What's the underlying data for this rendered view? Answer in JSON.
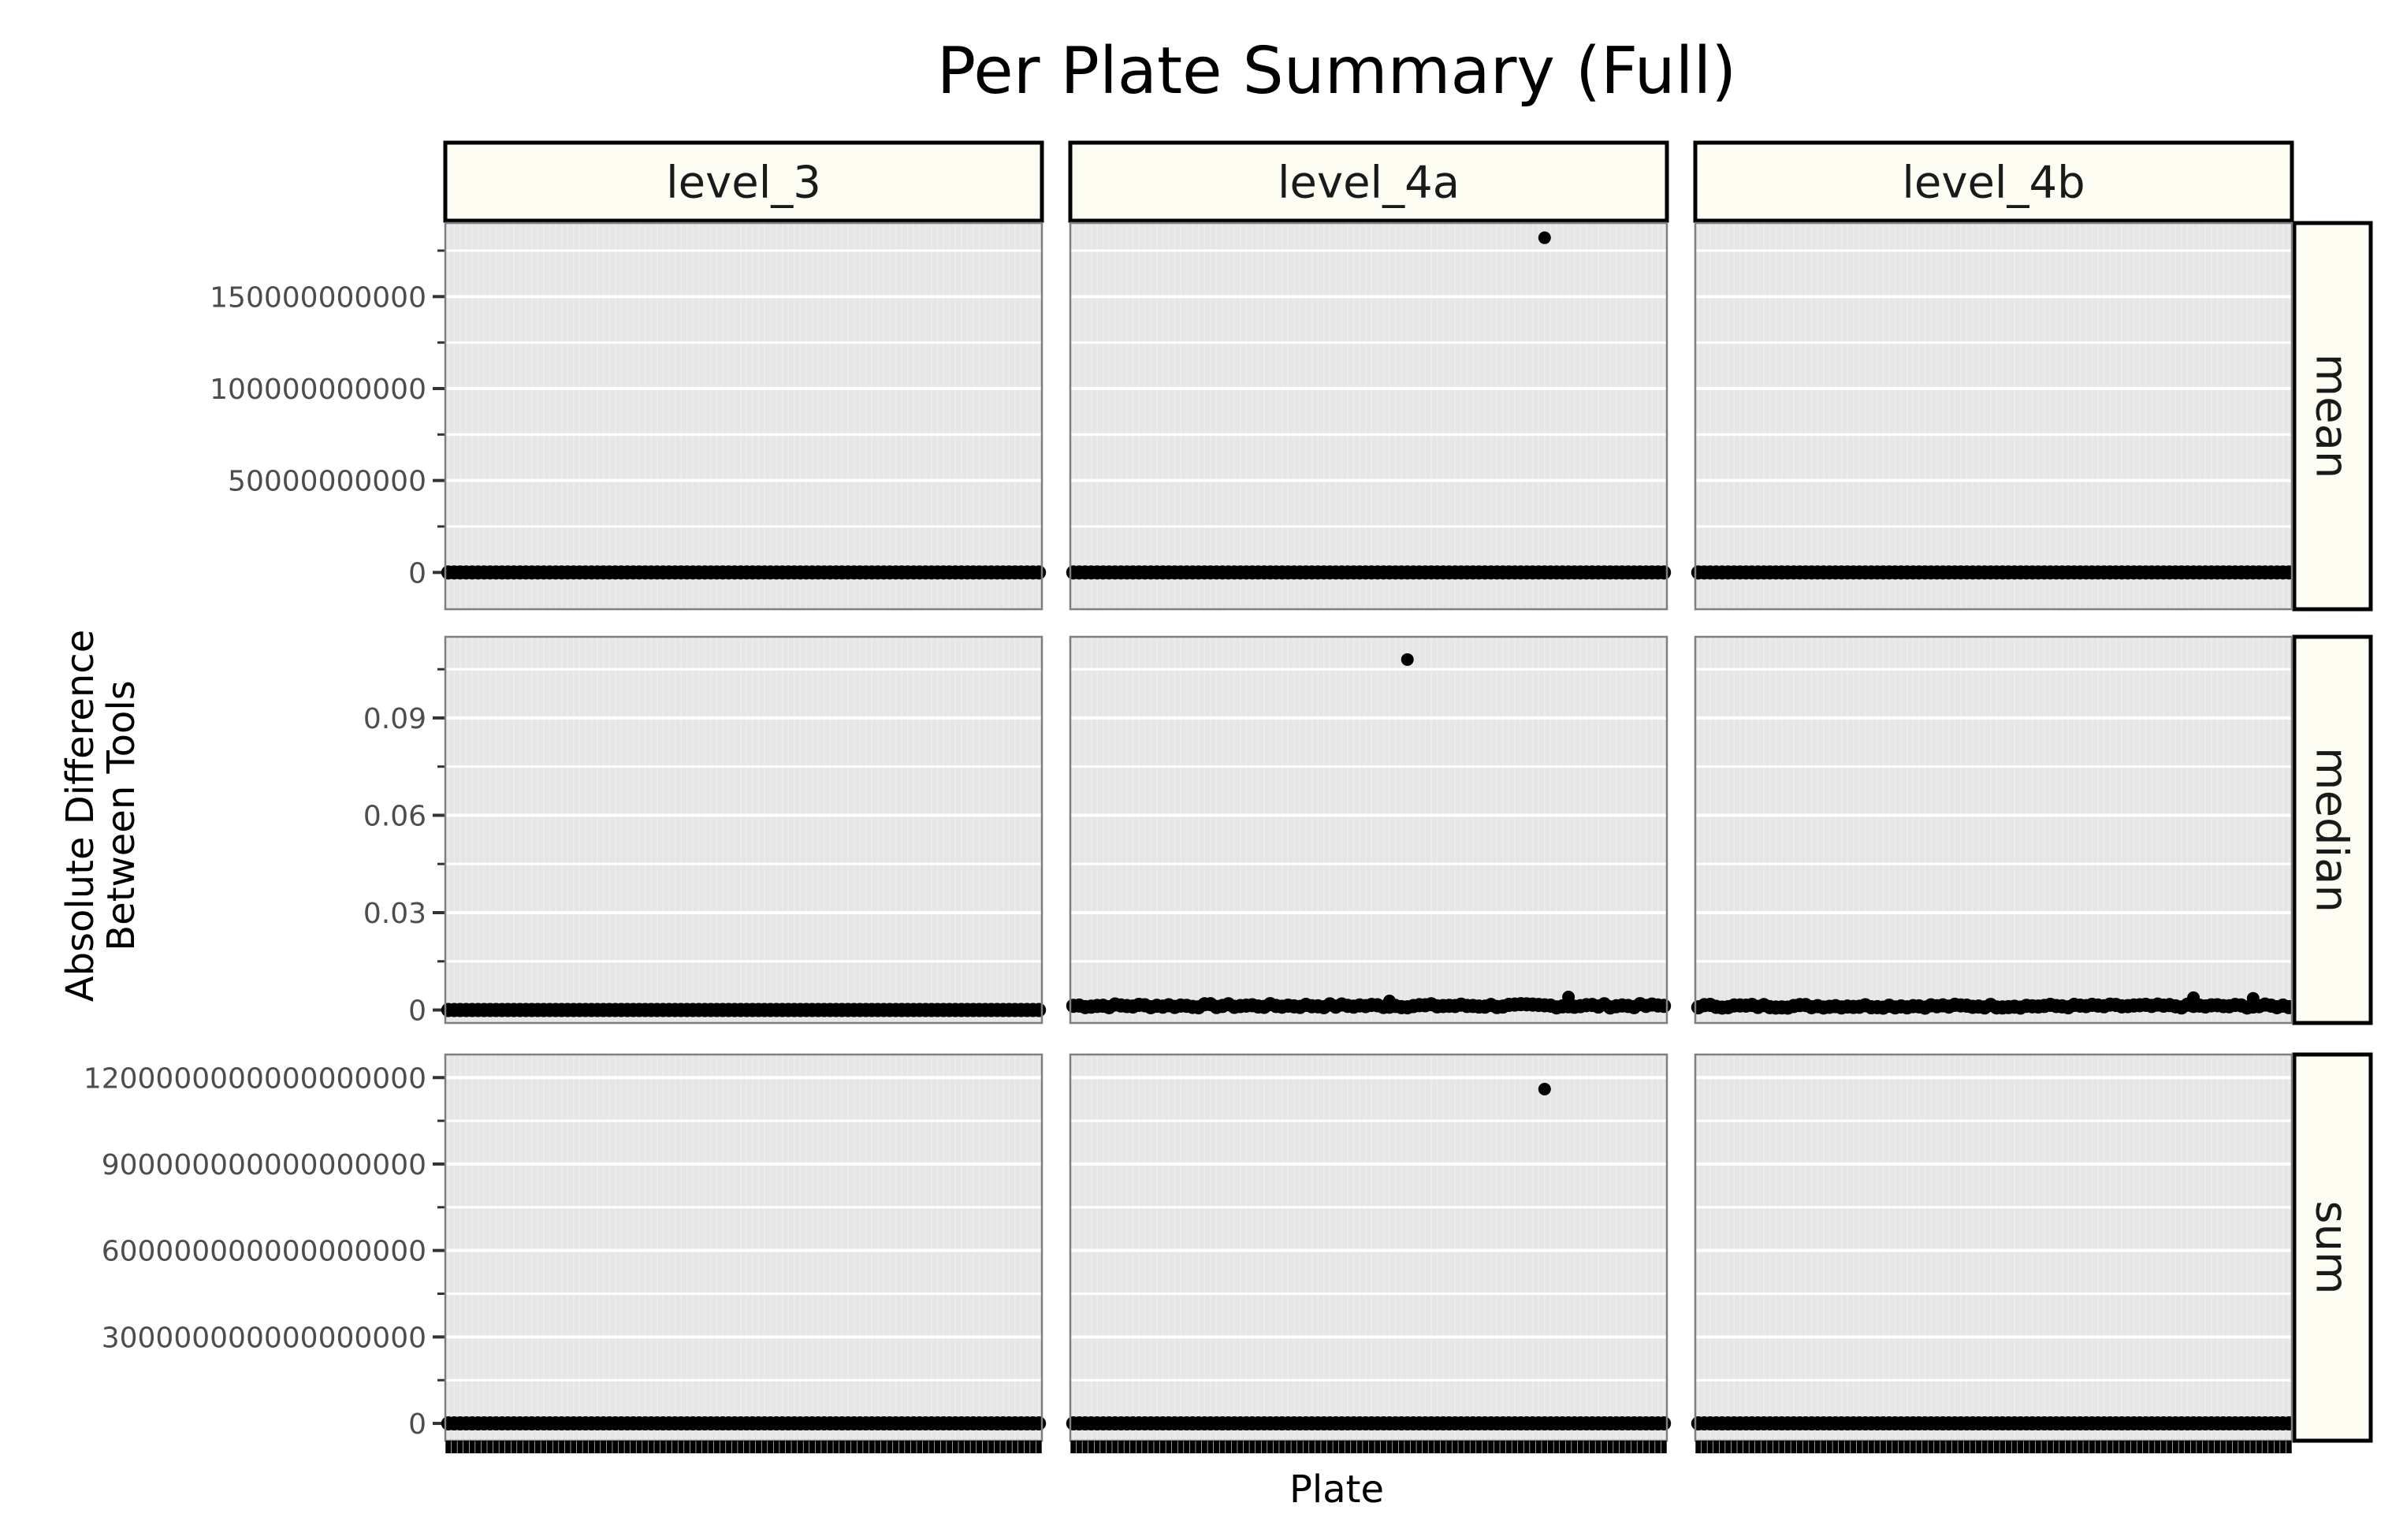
{
  "chart_data": {
    "type": "scatter",
    "title": "Per Plate Summary (Full)",
    "xlabel": "Plate",
    "ylabel_lines": [
      "Absolute Difference",
      "Between Tools"
    ],
    "grid": true,
    "x_tick_labels_visible": false,
    "columns": [
      "level_3",
      "level_4a",
      "level_4b"
    ],
    "rows": [
      {
        "name": "mean",
        "ylim": [
          -20000000000,
          190000000000
        ],
        "yticks": [
          0,
          50000000000,
          100000000000,
          150000000000
        ],
        "yticklabels": [
          "0",
          "50000000000",
          "100000000000",
          "150000000000"
        ]
      },
      {
        "name": "median",
        "ylim": [
          -0.004,
          0.115
        ],
        "yticks": [
          0,
          0.03,
          0.06,
          0.09
        ],
        "yticklabels": [
          "0",
          "0.03",
          "0.06",
          "0.09"
        ]
      },
      {
        "name": "sum",
        "ylim": [
          -60000000000000000,
          1280000000000000000
        ],
        "yticks": [
          0,
          300000000000000000,
          600000000000000000,
          900000000000000000,
          1200000000000000000
        ],
        "yticklabels": [
          "0",
          "300000000000000000",
          "600000000000000000",
          "900000000000000000",
          "1200000000000000000"
        ]
      }
    ],
    "n_plates": 100,
    "colors": {
      "panel_bg": "#e6e6e6",
      "grid_major": "#ffffff",
      "strip_fill": "#fdfdf3",
      "strip_border": "#000000",
      "point": "#000000",
      "panel_border": "#7f7f7f"
    },
    "series": [
      {
        "name": "level_3",
        "facet": "mean",
        "baseline": 0,
        "outliers": []
      },
      {
        "name": "level_4a",
        "facet": "mean",
        "baseline": 0,
        "outliers": [
          {
            "plate_index": 79,
            "value": 182000000000
          }
        ]
      },
      {
        "name": "level_4b",
        "facet": "mean",
        "baseline": 0,
        "outliers": []
      },
      {
        "name": "level_3",
        "facet": "median",
        "baseline": 0,
        "outliers": []
      },
      {
        "name": "level_4a",
        "facet": "median",
        "baseline": 0.0013,
        "outliers": [
          {
            "plate_index": 56,
            "value": 0.108
          },
          {
            "plate_index": 83,
            "value": 0.004
          },
          {
            "plate_index": 53,
            "value": 0.0028
          }
        ]
      },
      {
        "name": "level_4b",
        "facet": "median",
        "baseline": 0.0012,
        "outliers": [
          {
            "plate_index": 83,
            "value": 0.0038
          },
          {
            "plate_index": 93,
            "value": 0.0036
          }
        ]
      },
      {
        "name": "level_3",
        "facet": "sum",
        "baseline": 0,
        "outliers": []
      },
      {
        "name": "level_4a",
        "facet": "sum",
        "baseline": 0,
        "outliers": [
          {
            "plate_index": 79,
            "value": 1160000000000000000
          }
        ]
      },
      {
        "name": "level_4b",
        "facet": "sum",
        "baseline": 0,
        "outliers": []
      }
    ]
  }
}
